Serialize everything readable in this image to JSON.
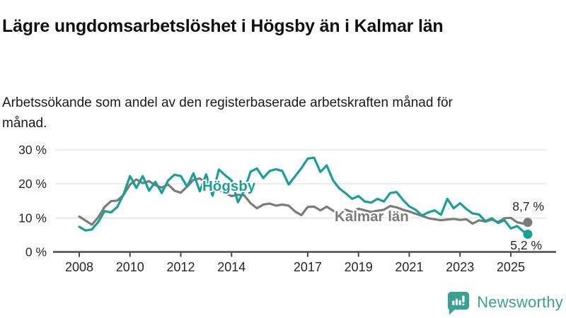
{
  "header": {
    "title": "Lägre ungdomsarbetslöshet i Högsby än i Kalmar län",
    "subtitle": "Arbetssökande som andel av den registerbaserade arbetskraften månad för månad."
  },
  "chart_data": {
    "type": "line",
    "title": "Lägre ungdomsarbetslöshet i Högsby än i Kalmar län",
    "ylabel": "",
    "xlabel": "",
    "grid": true,
    "legend_position": "inline-labels",
    "x_axis": {
      "ticks": [
        2008,
        2010,
        2012,
        2014,
        2017,
        2019,
        2021,
        2023,
        2025
      ],
      "range": [
        2007.75,
        2025.9
      ]
    },
    "y_axis": {
      "ticks": [
        0,
        10,
        20,
        30
      ],
      "tick_suffix": " %",
      "range": [
        0,
        32
      ]
    },
    "x": [
      2008,
      2008.25,
      2008.5,
      2008.75,
      2009,
      2009.25,
      2009.5,
      2009.75,
      2010,
      2010.25,
      2010.5,
      2010.75,
      2011,
      2011.25,
      2011.5,
      2011.75,
      2012,
      2012.25,
      2012.5,
      2012.75,
      2013,
      2013.25,
      2013.5,
      2013.75,
      2014,
      2014.25,
      2014.5,
      2014.75,
      2015,
      2015.25,
      2015.5,
      2015.75,
      2016,
      2016.25,
      2016.5,
      2016.75,
      2017,
      2017.25,
      2017.5,
      2017.75,
      2018,
      2018.25,
      2018.5,
      2018.75,
      2019,
      2019.25,
      2019.5,
      2019.75,
      2020,
      2020.25,
      2020.5,
      2020.75,
      2021,
      2021.25,
      2021.5,
      2021.75,
      2022,
      2022.25,
      2022.5,
      2022.75,
      2023,
      2023.25,
      2023.5,
      2023.75,
      2024,
      2024.25,
      2024.5,
      2024.75,
      2025,
      2025.25,
      2025.5,
      2025.67
    ],
    "series": [
      {
        "name": "Kalmar län",
        "color": "#7b7b7b",
        "end_label": "8,7 %",
        "final_value": 8.7,
        "values": [
          10.4,
          9.2,
          8.0,
          10.2,
          13.2,
          14.9,
          15.1,
          16.8,
          19.8,
          21.3,
          20.2,
          20.8,
          19.6,
          18.9,
          19.8,
          18.0,
          17.4,
          19.2,
          21.2,
          21.6,
          20.3,
          19.3,
          18.2,
          17.3,
          16.4,
          16.8,
          16.6,
          14.3,
          12.8,
          13.9,
          14.2,
          13.6,
          13.9,
          13.6,
          11.9,
          10.8,
          13.2,
          13.3,
          12.2,
          13.3,
          12.1,
          11.1,
          12.4,
          11.7,
          12.7,
          12.2,
          11.7,
          12.1,
          12.4,
          13.5,
          13.1,
          12.4,
          11.9,
          11.2,
          10.6,
          9.9,
          9.6,
          9.3,
          9.5,
          9.7,
          9.4,
          9.6,
          8.3,
          9.3,
          8.9,
          9.5,
          8.8,
          9.9,
          10.0,
          8.7,
          8.3,
          8.7
        ]
      },
      {
        "name": "Högsby",
        "color": "#18a094",
        "end_label": "5,2 %",
        "final_value": 5.2,
        "values": [
          7.4,
          6.3,
          6.6,
          8.8,
          12.0,
          11.6,
          13.2,
          17.0,
          22.3,
          18.8,
          22.3,
          18.0,
          20.6,
          17.3,
          21.0,
          22.7,
          22.3,
          19.2,
          23.1,
          17.8,
          22.8,
          16.5,
          24.2,
          22.5,
          21.0,
          14.6,
          18.0,
          23.6,
          24.5,
          21.7,
          23.8,
          24.3,
          23.8,
          19.8,
          22.2,
          24.6,
          27.4,
          27.7,
          23.5,
          25.4,
          21.0,
          18.6,
          17.2,
          15.6,
          16.4,
          14.8,
          14.5,
          15.6,
          14.8,
          17.3,
          17.6,
          15.3,
          13.4,
          12.4,
          10.7,
          11.6,
          12.2,
          10.9,
          15.6,
          12.8,
          14.3,
          12.6,
          11.3,
          11.0,
          9.0,
          9.9,
          8.5,
          9.3,
          6.9,
          7.6,
          6.0,
          5.2
        ]
      }
    ]
  },
  "footer": {
    "brand": "Newsworthy",
    "brand_color": "#3aa091"
  }
}
